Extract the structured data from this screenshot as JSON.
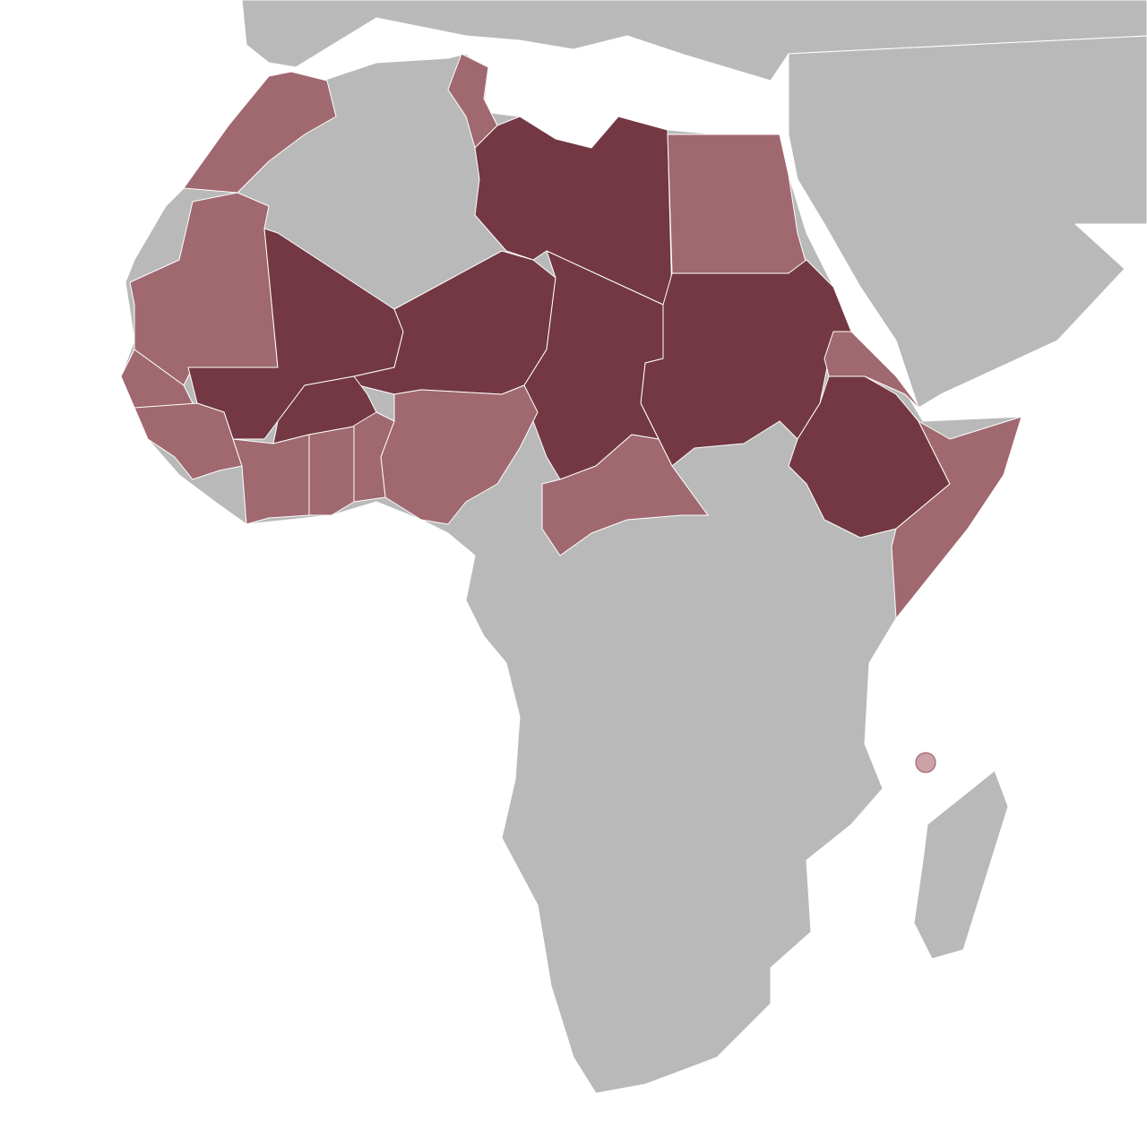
{
  "colors": {
    "background": "#ffffff",
    "base_land": "#b9b9b9",
    "high": "#733843",
    "medium": "#a0686f",
    "island_marker_fill": "#caa2a8",
    "island_marker_stroke": "#a0686f",
    "border": "#ffffff"
  },
  "regions": {
    "morocco": "medium",
    "tunisia": "medium",
    "libya": "high",
    "egypt": "medium",
    "sudan": "high",
    "eritrea": "medium",
    "ethiopia": "high",
    "somalia": "medium",
    "mauritania": "medium",
    "mali": "high",
    "niger": "high",
    "chad": "high",
    "burkina-faso": "high",
    "nigeria": "medium",
    "central-african-republic": "medium",
    "senegal": "medium",
    "guinea": "medium",
    "cote-divoire": "medium",
    "ghana": "medium",
    "togo-benin": "medium",
    "comoros": "marker"
  }
}
